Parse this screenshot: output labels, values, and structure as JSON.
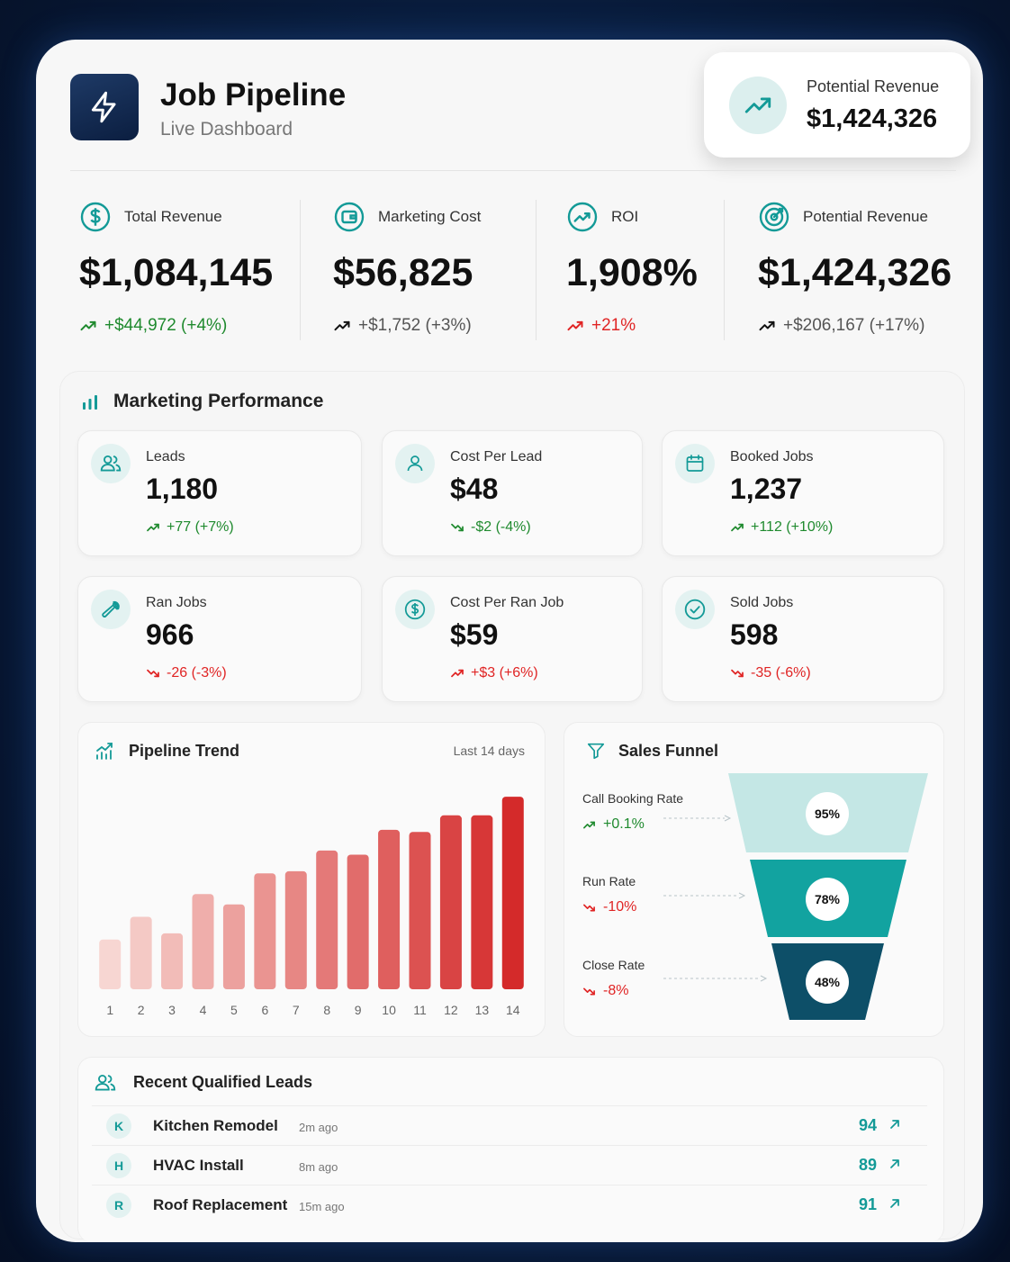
{
  "header": {
    "title": "Job Pipeline",
    "subtitle": "Live Dashboard"
  },
  "potential_card": {
    "label": "Potential Revenue",
    "value": "$1,424,326",
    "icon": "trend-up-icon"
  },
  "kpis": [
    {
      "label": "Total Revenue",
      "value": "$1,084,145",
      "change": "+$44,972 (+4%)",
      "trend": "up",
      "icon": "dollar-circle-icon"
    },
    {
      "label": "Marketing Cost",
      "value": "$56,825",
      "change": "+$1,752 (+3%)",
      "trend": "neutral",
      "icon": "wallet-icon"
    },
    {
      "label": "ROI",
      "value": "1,908%",
      "change": "+21%",
      "trend": "down",
      "icon": "trend-circle-icon"
    },
    {
      "label": "Potential Revenue",
      "value": "$1,424,326",
      "change": "+$206,167 (+17%)",
      "trend": "neutral",
      "icon": "target-icon"
    }
  ],
  "marketing": {
    "title": "Marketing Performance",
    "cards": [
      {
        "label": "Leads",
        "value": "1,180",
        "change": "+77 (+7%)",
        "trend": "up",
        "icon": "users-icon"
      },
      {
        "label": "Cost Per Lead",
        "value": "$48",
        "change": "-$2 (-4%)",
        "trend": "up-down",
        "icon": "user-icon"
      },
      {
        "label": "Booked Jobs",
        "value": "1,237",
        "change": "+112 (+10%)",
        "trend": "up",
        "icon": "calendar-icon"
      },
      {
        "label": "Ran Jobs",
        "value": "966",
        "change": "-26 (-3%)",
        "trend": "down",
        "icon": "wrench-icon"
      },
      {
        "label": "Cost Per Ran Job",
        "value": "$59",
        "change": "+$3 (+6%)",
        "trend": "down-up",
        "icon": "dollar-circle-icon"
      },
      {
        "label": "Sold Jobs",
        "value": "598",
        "change": "-35 (-6%)",
        "trend": "down",
        "icon": "check-circle-icon"
      }
    ]
  },
  "pipeline": {
    "title": "Pipeline Trend",
    "range_label": "Last 14 days"
  },
  "chart_data": {
    "type": "bar",
    "categories": [
      "1",
      "2",
      "3",
      "4",
      "5",
      "6",
      "7",
      "8",
      "9",
      "10",
      "11",
      "12",
      "13",
      "14"
    ],
    "values": [
      24,
      35,
      27,
      46,
      41,
      56,
      57,
      67,
      65,
      77,
      76,
      84,
      84,
      93
    ],
    "title": "Pipeline Trend",
    "xlabel": "",
    "ylabel": "",
    "ylim": [
      0,
      100
    ],
    "grid": false,
    "colors": {
      "low": "#f7d6d2",
      "high": "#d42a2a"
    }
  },
  "funnel": {
    "title": "Sales Funnel",
    "stages": [
      {
        "label": "Call Booking Rate",
        "change": "+0.1%",
        "trend": "up",
        "value": "95%",
        "color": "#c4e7e5"
      },
      {
        "label": "Run Rate",
        "change": "-10%",
        "trend": "down",
        "value": "78%",
        "color": "#12a3a0"
      },
      {
        "label": "Close Rate",
        "change": "-8%",
        "trend": "down",
        "value": "48%",
        "color": "#0d4f68"
      }
    ]
  },
  "leads": {
    "title": "Recent Qualified Leads",
    "rows": [
      {
        "initial": "K",
        "name": "Kitchen Remodel",
        "time": "2m ago",
        "score": "94"
      },
      {
        "initial": "H",
        "name": "HVAC Install",
        "time": "8m ago",
        "score": "89"
      },
      {
        "initial": "R",
        "name": "Roof Replacement",
        "time": "15m ago",
        "score": "91"
      }
    ]
  },
  "theme": {
    "accent": "#139a97",
    "up": "#1f8a2e",
    "down": "#e02424"
  }
}
